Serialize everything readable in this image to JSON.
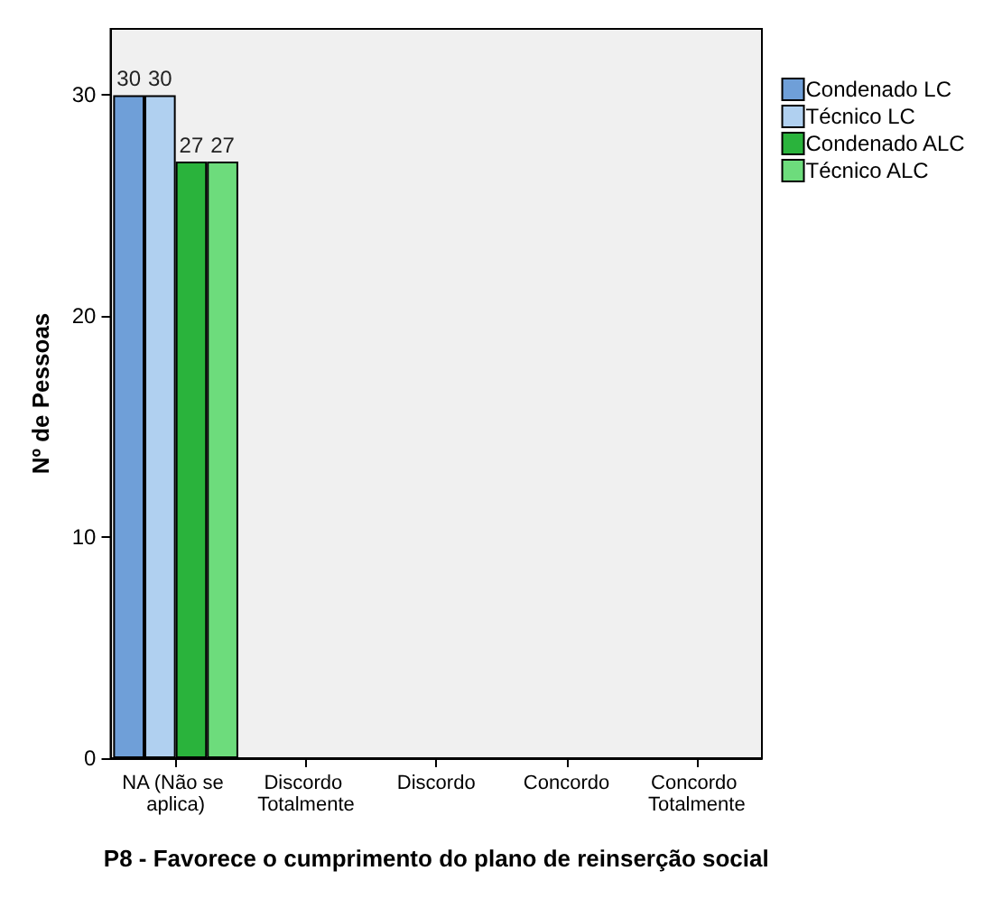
{
  "chart_data": {
    "type": "bar",
    "xlabel": "P8 - Favorece o cumprimento do plano de reinserção social",
    "ylabel": "Nº de Pessoas",
    "categories": [
      "NA (Não se aplica)",
      "Discordo Totalmente",
      "Discordo",
      "Concordo",
      "Concordo Totalmente"
    ],
    "series": [
      {
        "name": "Condenado LC",
        "color": "#6f9fd8",
        "values": [
          30,
          null,
          null,
          null,
          null
        ]
      },
      {
        "name": "Técnico LC",
        "color": "#b0d0f0",
        "values": [
          30,
          null,
          null,
          null,
          null
        ]
      },
      {
        "name": "Condenado ALC",
        "color": "#2ab33c",
        "values": [
          27,
          null,
          null,
          null,
          null
        ]
      },
      {
        "name": "Técnico ALC",
        "color": "#6ddc7c",
        "values": [
          27,
          null,
          null,
          null,
          null
        ]
      }
    ],
    "ylim": [
      0,
      33
    ],
    "yticks": [
      0,
      10,
      20,
      30
    ],
    "data_labels": true,
    "grid": false,
    "legend": "right"
  }
}
